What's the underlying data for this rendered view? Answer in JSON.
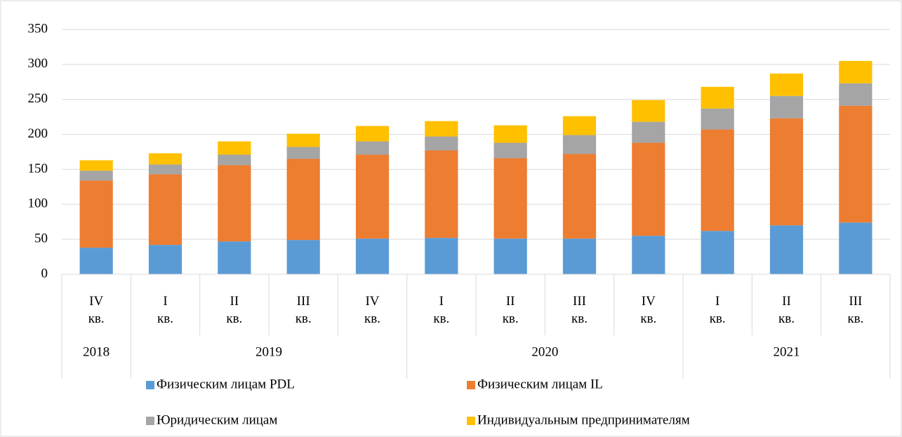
{
  "chart_data": {
    "type": "stacked_bar",
    "groups": [
      {
        "label": "2018",
        "categories": [
          "IV кв."
        ]
      },
      {
        "label": "2019",
        "categories": [
          "I кв.",
          "II кв.",
          "III кв.",
          "IV кв."
        ]
      },
      {
        "label": "2020",
        "categories": [
          "I кв.",
          "II кв.",
          "III кв.",
          "IV кв."
        ]
      },
      {
        "label": "2021",
        "categories": [
          "I кв.",
          "II кв.",
          "III кв."
        ]
      }
    ],
    "series": [
      {
        "name": "Физическим лицам PDL",
        "color": "#5b9bd5",
        "values": [
          38,
          42,
          47,
          49,
          51,
          52,
          51,
          51,
          55,
          62,
          70,
          74
        ]
      },
      {
        "name": "Физическим лицам IL",
        "color": "#ed7d31",
        "values": [
          96,
          101,
          109,
          116,
          120,
          125,
          115,
          121,
          133,
          145,
          153,
          167
        ]
      },
      {
        "name": "Юридическим лицам",
        "color": "#a5a5a5",
        "values": [
          14,
          14,
          15,
          17,
          19,
          20,
          22,
          27,
          30,
          30,
          32,
          32
        ]
      },
      {
        "name": "Индивидуальным предпринимателям",
        "color": "#ffc000",
        "values": [
          15,
          16,
          19,
          19,
          22,
          22,
          25,
          27,
          31,
          31,
          32,
          32
        ]
      }
    ],
    "ylim": [
      0,
      350
    ],
    "yticks": [
      0,
      50,
      100,
      150,
      200,
      250,
      300,
      350
    ],
    "grid": true,
    "legend": "bottom"
  }
}
